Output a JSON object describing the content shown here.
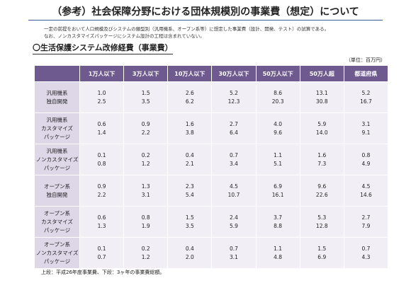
{
  "header": {
    "title": "（参考）社会保障分野における団体規模別の事業費（想定）について",
    "notes": [
      "一定の前提をおいて人口規模及びシステムの類型別（汎用機系、オープン系等）に想定した事業費（設計、開発、テスト）の試算である。",
      "なお、ノンカスタマイズパッケージにシステム設計の工程は含まれていない。"
    ]
  },
  "section": {
    "heading": "〇生活保護システム改修経費（事業費）",
    "unit": "（単位：百万円）"
  },
  "table": {
    "columns": [
      "1万人以下",
      "3万人以下",
      "10万人以下",
      "30万人以下",
      "50万人以下",
      "50万人超",
      "都道府県"
    ],
    "rows": [
      {
        "label": [
          "汎用機系",
          "独自開発"
        ],
        "cells": [
          [
            "1.0",
            "2.5"
          ],
          [
            "1.5",
            "3.5"
          ],
          [
            "2.6",
            "6.2"
          ],
          [
            "5.2",
            "12.3"
          ],
          [
            "8.6",
            "20.3"
          ],
          [
            "13.1",
            "30.8"
          ],
          [
            "5.2",
            "16.7"
          ]
        ]
      },
      {
        "label": [
          "汎用機系",
          "カスタマイズ",
          "パッケージ"
        ],
        "cells": [
          [
            "0.6",
            "1.4"
          ],
          [
            "0.9",
            "2.2"
          ],
          [
            "1.6",
            "3.8"
          ],
          [
            "2.7",
            "6.4"
          ],
          [
            "4.0",
            "9.6"
          ],
          [
            "5.9",
            "14.0"
          ],
          [
            "3.1",
            "9.1"
          ]
        ]
      },
      {
        "label": [
          "汎用機系",
          "ノンカスタマイズ",
          "パッケージ"
        ],
        "cells": [
          [
            "0.1",
            "0.8"
          ],
          [
            "0.2",
            "1.2"
          ],
          [
            "0.4",
            "2.1"
          ],
          [
            "0.7",
            "3.4"
          ],
          [
            "1.1",
            "5.1"
          ],
          [
            "1.6",
            "7.3"
          ],
          [
            "0.8",
            "4.9"
          ]
        ]
      },
      {
        "label": [
          "オープン系",
          "独自開発"
        ],
        "cells": [
          [
            "0.9",
            "2.2"
          ],
          [
            "1.3",
            "3.1"
          ],
          [
            "2.3",
            "5.4"
          ],
          [
            "4.5",
            "10.7"
          ],
          [
            "6.9",
            "16.1"
          ],
          [
            "9.6",
            "22.6"
          ],
          [
            "4.5",
            "14.6"
          ]
        ]
      },
      {
        "label": [
          "オープン系",
          "カスタマイズ",
          "パッケージ"
        ],
        "cells": [
          [
            "0.6",
            "1.3"
          ],
          [
            "0.8",
            "1.9"
          ],
          [
            "1.5",
            "3.5"
          ],
          [
            "2.4",
            "5.9"
          ],
          [
            "3.7",
            "8.8"
          ],
          [
            "5.3",
            "12.8"
          ],
          [
            "2.7",
            "7.9"
          ]
        ]
      },
      {
        "label": [
          "オープン系",
          "ノンカスタマイズ",
          "パッケージ"
        ],
        "cells": [
          [
            "0.1",
            "0.7"
          ],
          [
            "0.2",
            "1.2"
          ],
          [
            "0.4",
            "2.0"
          ],
          [
            "0.7",
            "3.1"
          ],
          [
            "1.1",
            "4.8"
          ],
          [
            "1.5",
            "6.9"
          ],
          [
            "0.7",
            "4.3"
          ]
        ]
      }
    ]
  },
  "footer": "上段：平成26年度事業費、下段：3ヶ年の事業費総額。"
}
